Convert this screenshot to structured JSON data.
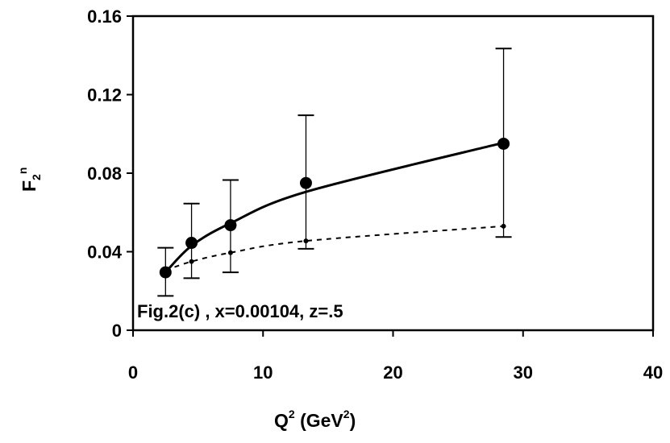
{
  "chart_data": {
    "type": "line",
    "title": "",
    "xlabel": {
      "base": "Q",
      "sup": "2",
      "unit_open": " (GeV",
      "unit_sup": "2",
      "unit_close": ")"
    },
    "ylabel": {
      "base": "F",
      "sub": "2",
      "sup": "n"
    },
    "xlim": [
      0,
      40
    ],
    "ylim": [
      0,
      0.16
    ],
    "x_ticks": [
      0,
      10,
      20,
      30,
      40
    ],
    "x_tick_labels": [
      "0",
      "10",
      "20",
      "30",
      "40"
    ],
    "y_ticks": [
      0,
      0.04,
      0.08,
      0.12,
      0.16
    ],
    "y_tick_labels": [
      "0",
      "0.04",
      "0.08",
      "0.12",
      "0.16"
    ],
    "grid": false,
    "legend": "none",
    "annotation": "Fig.2(c) , x=0.00104, z=.5",
    "data_points": {
      "x": [
        2.5,
        4.5,
        7.5,
        13.3,
        28.5
      ],
      "y": [
        0.0295,
        0.0445,
        0.0535,
        0.075,
        0.095
      ],
      "err_low": [
        0.0175,
        0.0265,
        0.0295,
        0.0415,
        0.0475
      ],
      "err_high": [
        0.042,
        0.0645,
        0.0765,
        0.1095,
        0.1435
      ],
      "color": "#000000"
    },
    "series": [
      {
        "style": "solid",
        "color": "#000000",
        "x": [
          2.5,
          4.5,
          7.5,
          13.3,
          28.5
        ],
        "y": [
          0.0295,
          0.043,
          0.0545,
          0.0705,
          0.0955
        ]
      },
      {
        "style": "dashed",
        "color": "#000000",
        "x": [
          2.5,
          4.5,
          7.5,
          13.3,
          28.5
        ],
        "y": [
          0.0305,
          0.035,
          0.0395,
          0.0455,
          0.053
        ]
      }
    ]
  }
}
